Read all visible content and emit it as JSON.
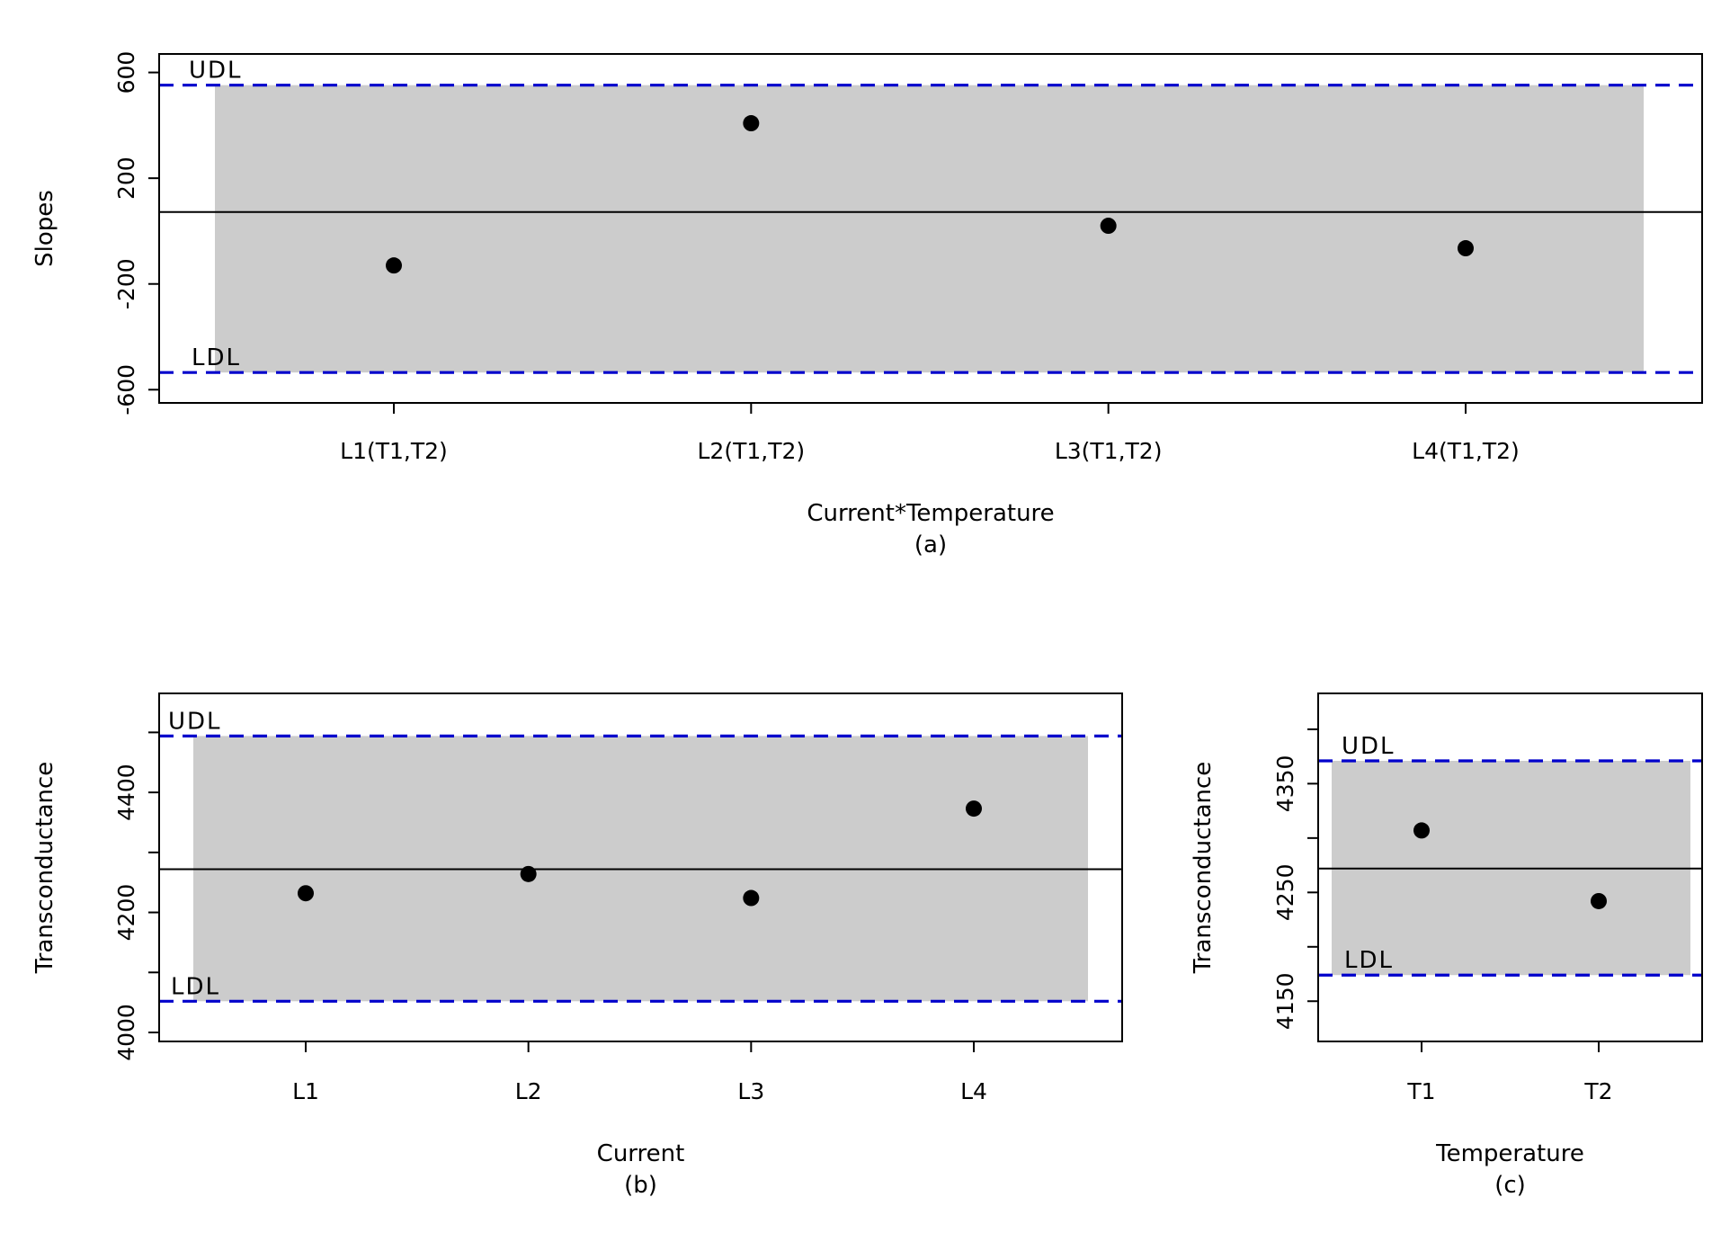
{
  "chart_data": [
    {
      "id": "a",
      "type": "scatter",
      "xlabel": "Current*Temperature",
      "caption": "(a)",
      "ylabel": "Slopes",
      "categories": [
        "L1(T1,T2)",
        "L2(T1,T2)",
        "L3(T1,T2)",
        "L4(T1,T2)"
      ],
      "values": [
        -130,
        408,
        20,
        -65
      ],
      "yticks": [
        -600,
        -200,
        200,
        600
      ],
      "ylim": [
        -650,
        670
      ],
      "center": 72,
      "udl": 552,
      "ldl": -535,
      "udl_label": "UDL",
      "ldl_label": "LDL",
      "band_color": "#cccccc",
      "limit_color": "#0000cc",
      "grid": false,
      "legend": "none"
    },
    {
      "id": "b",
      "type": "scatter",
      "xlabel": "Current",
      "caption": "(b)",
      "ylabel": "Transconductance",
      "categories": [
        "L1",
        "L2",
        "L3",
        "L4"
      ],
      "values": [
        4232,
        4264,
        4224,
        4373
      ],
      "yticks": [
        4000,
        4100,
        4200,
        4300,
        4400,
        4500
      ],
      "ytick_labels": [
        "4000",
        "",
        "4200",
        "",
        "4400",
        ""
      ],
      "ylim": [
        3985,
        4565
      ],
      "center": 4272,
      "udl": 4494,
      "ldl": 4052,
      "udl_label": "UDL",
      "ldl_label": "LDL",
      "band_color": "#cccccc",
      "limit_color": "#0000cc",
      "grid": false,
      "legend": "none"
    },
    {
      "id": "c",
      "type": "scatter",
      "xlabel": "Temperature",
      "caption": "(c)",
      "ylabel": "Transconductance",
      "categories": [
        "T1",
        "T2"
      ],
      "values": [
        4307,
        4242
      ],
      "yticks": [
        4150,
        4200,
        4250,
        4300,
        4350,
        4400
      ],
      "ytick_labels": [
        "4150",
        "",
        "4250",
        "",
        "4350",
        ""
      ],
      "ylim": [
        4113,
        4433
      ],
      "center": 4272,
      "udl": 4371,
      "ldl": 4174,
      "udl_label": "UDL",
      "ldl_label": "LDL",
      "band_color": "#cccccc",
      "limit_color": "#0000cc",
      "grid": false,
      "legend": "none"
    }
  ]
}
